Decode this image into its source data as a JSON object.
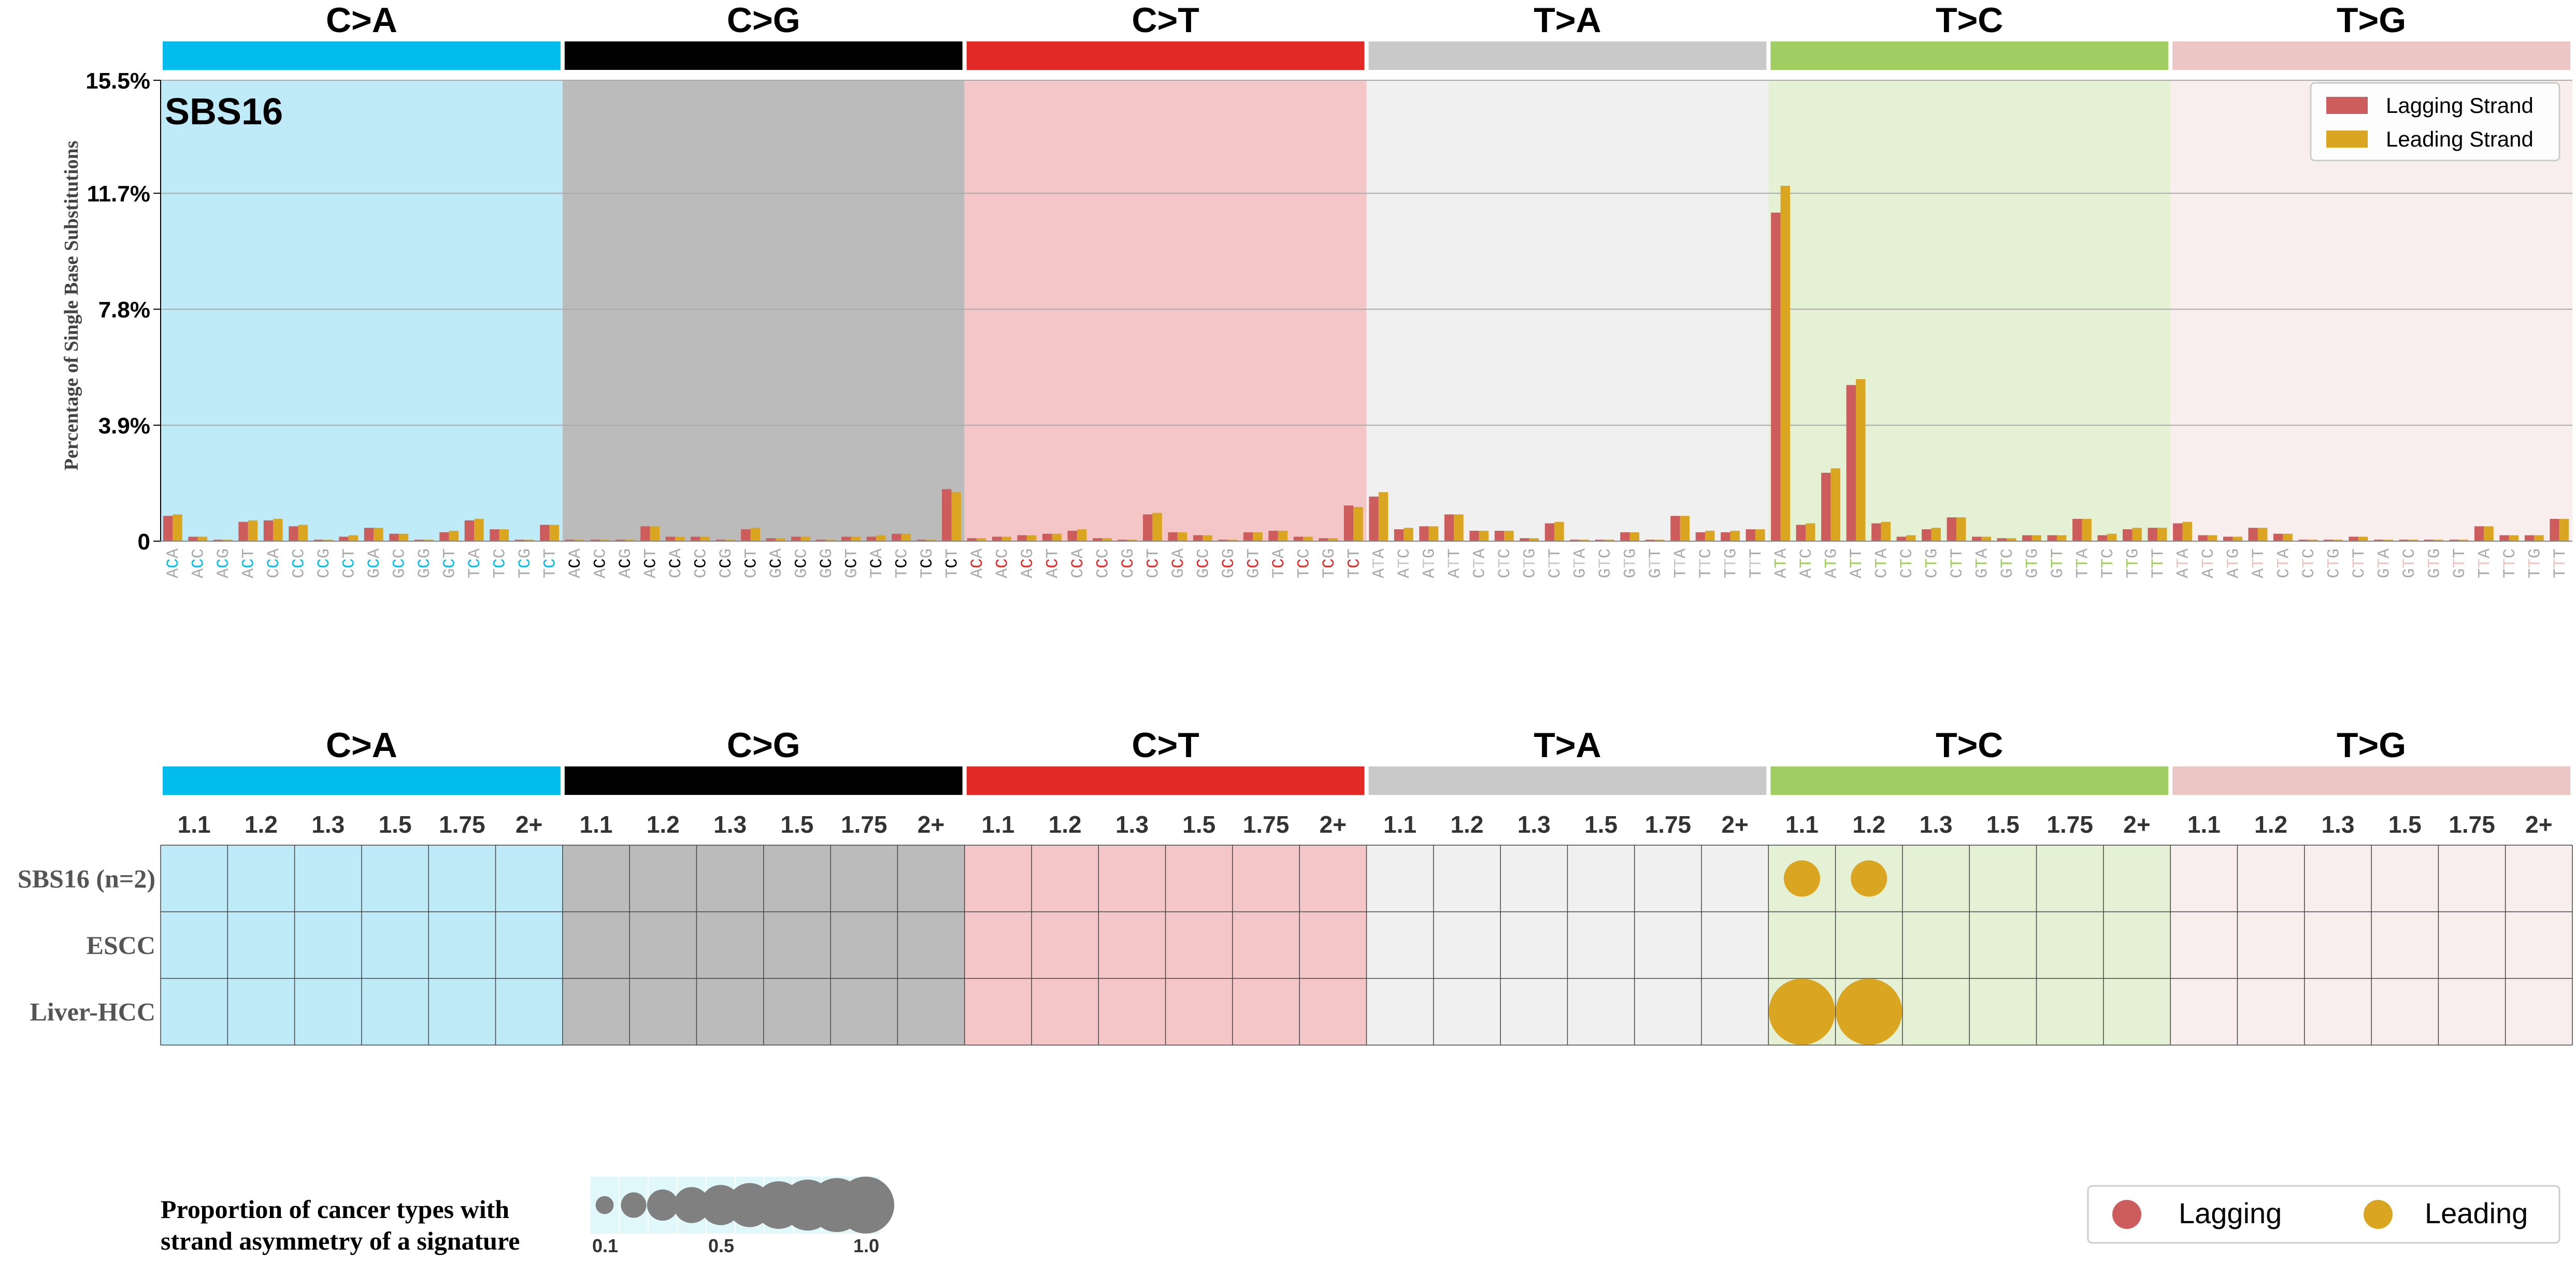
{
  "colors": {
    "categories": [
      "#03bcee",
      "#010101",
      "#e32926",
      "#cac9c9",
      "#a1ce63",
      "#ebc6c4"
    ],
    "backgrounds": [
      "#bfeaf7",
      "#bbbbbb",
      "#f5c6c7",
      "#f0f0f0",
      "#e5f1d4",
      "#f9eeee"
    ],
    "lagging": "#cd5c5c",
    "leading": "#daa520",
    "legend_cell": "#e0f8fa",
    "legend_dot": "#808080"
  },
  "categories": [
    "C>A",
    "C>G",
    "C>T",
    "T>A",
    "T>C",
    "T>G"
  ],
  "chart_data": [
    {
      "type": "bar",
      "title": "SBS16",
      "ylabel": "Percentage of Single Base Substitutions",
      "ylim": [
        0,
        15.5
      ],
      "yticks": [
        "0",
        "3.9%",
        "7.8%",
        "11.7%",
        "15.5%"
      ],
      "ytick_values": [
        0,
        3.9,
        7.8,
        11.7,
        15.5
      ],
      "grid": true,
      "legend": "top-right",
      "series": [
        {
          "name": "Lagging Strand"
        },
        {
          "name": "Leading Strand"
        }
      ],
      "contexts": [
        "ACA",
        "ACC",
        "ACG",
        "ACT",
        "CCA",
        "CCC",
        "CCG",
        "CCT",
        "GCA",
        "GCC",
        "GCG",
        "GCT",
        "TCA",
        "TCC",
        "TCG",
        "TCT",
        "ACA",
        "ACC",
        "ACG",
        "ACT",
        "CCA",
        "CCC",
        "CCG",
        "CCT",
        "GCA",
        "GCC",
        "GCG",
        "GCT",
        "TCA",
        "TCC",
        "TCG",
        "TCT",
        "ACA",
        "ACC",
        "ACG",
        "ACT",
        "CCA",
        "CCC",
        "CCG",
        "CCT",
        "GCA",
        "GCC",
        "GCG",
        "GCT",
        "TCA",
        "TCC",
        "TCG",
        "TCT",
        "ATA",
        "ATC",
        "ATG",
        "ATT",
        "CTA",
        "CTC",
        "CTG",
        "CTT",
        "GTA",
        "GTC",
        "GTG",
        "GTT",
        "TTA",
        "TTC",
        "TTG",
        "TTT",
        "ATA",
        "ATC",
        "ATG",
        "ATT",
        "CTA",
        "CTC",
        "CTG",
        "CTT",
        "GTA",
        "GTC",
        "GTG",
        "GTT",
        "TTA",
        "TTC",
        "TTG",
        "TTT",
        "ATA",
        "ATC",
        "ATG",
        "ATT",
        "CTA",
        "CTC",
        "CTG",
        "CTT",
        "GTA",
        "GTC",
        "GTG",
        "GTT",
        "TTA",
        "TTC",
        "TTG",
        "TTT"
      ],
      "lagging": [
        0.85,
        0.15,
        0.05,
        0.65,
        0.7,
        0.5,
        0.05,
        0.15,
        0.45,
        0.25,
        0.05,
        0.3,
        0.7,
        0.4,
        0.05,
        0.55,
        0.05,
        0.05,
        0.05,
        0.5,
        0.15,
        0.15,
        0.05,
        0.4,
        0.1,
        0.15,
        0.05,
        0.15,
        0.15,
        0.25,
        0.05,
        1.75,
        0.1,
        0.15,
        0.2,
        0.25,
        0.35,
        0.1,
        0.05,
        0.9,
        0.3,
        0.2,
        0.05,
        0.3,
        0.35,
        0.15,
        0.1,
        1.2,
        1.5,
        0.4,
        0.5,
        0.9,
        0.35,
        0.35,
        0.1,
        0.6,
        0.05,
        0.05,
        0.3,
        0.05,
        0.85,
        0.3,
        0.3,
        0.4,
        11.05,
        0.55,
        2.3,
        5.25,
        0.6,
        0.15,
        0.4,
        0.8,
        0.15,
        0.1,
        0.2,
        0.2,
        0.75,
        0.2,
        0.4,
        0.45,
        0.6,
        0.2,
        0.15,
        0.45,
        0.25,
        0.05,
        0.05,
        0.15,
        0.05,
        0.05,
        0.05,
        0.05,
        0.5,
        0.2,
        0.2,
        0.75
      ],
      "leading": [
        0.9,
        0.15,
        0.05,
        0.7,
        0.75,
        0.55,
        0.05,
        0.2,
        0.45,
        0.25,
        0.05,
        0.35,
        0.75,
        0.4,
        0.05,
        0.55,
        0.05,
        0.05,
        0.05,
        0.5,
        0.15,
        0.15,
        0.05,
        0.45,
        0.1,
        0.15,
        0.05,
        0.15,
        0.2,
        0.25,
        0.05,
        1.65,
        0.1,
        0.15,
        0.2,
        0.25,
        0.4,
        0.1,
        0.05,
        0.95,
        0.3,
        0.2,
        0.05,
        0.3,
        0.35,
        0.15,
        0.1,
        1.15,
        1.65,
        0.45,
        0.5,
        0.9,
        0.35,
        0.35,
        0.1,
        0.65,
        0.05,
        0.05,
        0.3,
        0.05,
        0.85,
        0.35,
        0.35,
        0.4,
        11.95,
        0.6,
        2.45,
        5.45,
        0.65,
        0.2,
        0.45,
        0.8,
        0.15,
        0.1,
        0.2,
        0.2,
        0.75,
        0.25,
        0.45,
        0.45,
        0.65,
        0.2,
        0.15,
        0.45,
        0.25,
        0.05,
        0.05,
        0.15,
        0.05,
        0.05,
        0.05,
        0.05,
        0.5,
        0.2,
        0.2,
        0.75
      ]
    },
    {
      "type": "scatter",
      "columns": [
        "1.1",
        "1.2",
        "1.3",
        "1.5",
        "1.75",
        "2+"
      ],
      "rows": [
        "SBS16 (n=2)",
        "ESCC",
        "Liver-HCC"
      ],
      "points": [
        {
          "row": 0,
          "category": 4,
          "column": 0,
          "strand": "leading",
          "proportion": 0.3
        },
        {
          "row": 0,
          "category": 4,
          "column": 1,
          "strand": "leading",
          "proportion": 0.3
        },
        {
          "row": 2,
          "category": 4,
          "column": 0,
          "strand": "leading",
          "proportion": 1.0
        },
        {
          "row": 2,
          "category": 4,
          "column": 1,
          "strand": "leading",
          "proportion": 1.0
        }
      ]
    }
  ],
  "size_legend": {
    "caption": [
      "Proportion of cancer types with",
      "strand asymmetry of a signature"
    ],
    "values": [
      0.1,
      0.2,
      0.3,
      0.4,
      0.5,
      0.6,
      0.7,
      0.8,
      0.9,
      1.0
    ],
    "tick_labels": [
      {
        "value": 0.1,
        "label": "0.1"
      },
      {
        "value": 0.5,
        "label": "0.5"
      },
      {
        "value": 1.0,
        "label": "1.0"
      }
    ]
  },
  "strand_legend": {
    "lagging": "Lagging",
    "leading": "Leading"
  }
}
